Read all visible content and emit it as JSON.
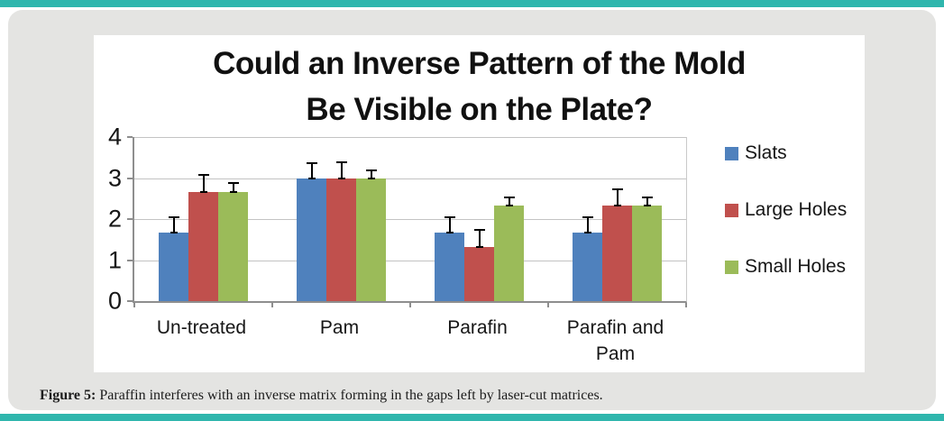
{
  "page": {
    "accent_color": "#2fb6ad",
    "card_color": "#e4e4e2"
  },
  "caption": {
    "label": "Figure 5:",
    "text": " Paraffin interferes with an inverse matrix forming in the gaps left by laser-cut matrices."
  },
  "chart_data": {
    "type": "bar",
    "title": "Could an Inverse Pattern of the Mold Be Visible on the Plate?",
    "title_line1": "Could an Inverse Pattern of the Mold",
    "title_line2": "Be Visible on the Plate?",
    "categories": [
      "Un-treated",
      "Pam",
      "Parafin",
      "Parafin and Pam"
    ],
    "series": [
      {
        "name": "Slats",
        "color": "#4f81bd",
        "values": [
          1.67,
          3.0,
          1.67,
          1.67
        ],
        "errors": [
          0.35,
          0.35,
          0.35,
          0.35
        ]
      },
      {
        "name": "Large Holes",
        "color": "#c0504d",
        "values": [
          2.67,
          3.0,
          1.33,
          2.33
        ],
        "errors": [
          0.38,
          0.37,
          0.38,
          0.38
        ]
      },
      {
        "name": "Small Holes",
        "color": "#9bbb59",
        "values": [
          2.67,
          3.0,
          2.33,
          2.33
        ],
        "errors": [
          0.18,
          0.17,
          0.18,
          0.18
        ]
      }
    ],
    "ylim": [
      0,
      4
    ],
    "yticks": [
      0,
      1,
      2,
      3,
      4
    ],
    "xlabel": "",
    "ylabel": "",
    "grid": true,
    "legend_position": "right",
    "error_bars": "upper"
  }
}
